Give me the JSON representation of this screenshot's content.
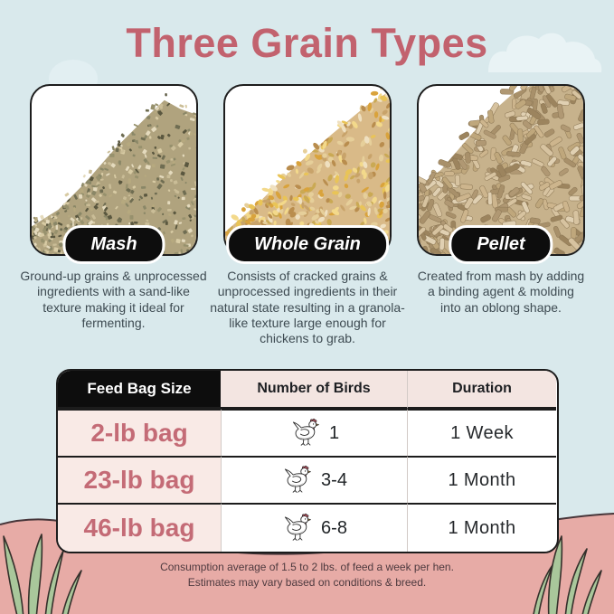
{
  "title": "Three Grain Types",
  "grain_types": [
    {
      "label": "Mash",
      "description": "Ground-up grains & unprocessed ingredients with a sand-like texture making it ideal for fermenting."
    },
    {
      "label": "Whole Grain",
      "description": "Consists of cracked grains & unprocessed ingredients in their natural state resulting in a granola-like texture large enough for chickens to grab."
    },
    {
      "label": "Pellet",
      "description": "Created from mash by adding a binding agent & molding into an oblong shape."
    }
  ],
  "feed_table": {
    "headers": [
      "Feed Bag Size",
      "Number of Birds",
      "Duration"
    ],
    "rows": [
      {
        "bag_size": "2-lb bag",
        "number_of_birds": "1",
        "duration": "1 Week"
      },
      {
        "bag_size": "23-lb bag",
        "number_of_birds": "3-4",
        "duration": "1 Month"
      },
      {
        "bag_size": "46-lb bag",
        "number_of_birds": "6-8",
        "duration": "1 Month"
      }
    ]
  },
  "footnote_lines": [
    "Consumption average of 1.5 to 2 lbs. of feed a week per hen.",
    "Estimates may vary based on conditions & breed."
  ],
  "colors": {
    "background": "#d9e9ec",
    "title": "#c2626e",
    "pill_bg": "#0d0d0d",
    "pill_text": "#ffffff",
    "bag_text": "#c46b76",
    "row_tint": "#f9eae6",
    "header_tint": "#f3e5e1",
    "header_black": "#0d0d0d",
    "hill": "#e7aba6",
    "grass": "#a9c79b"
  }
}
